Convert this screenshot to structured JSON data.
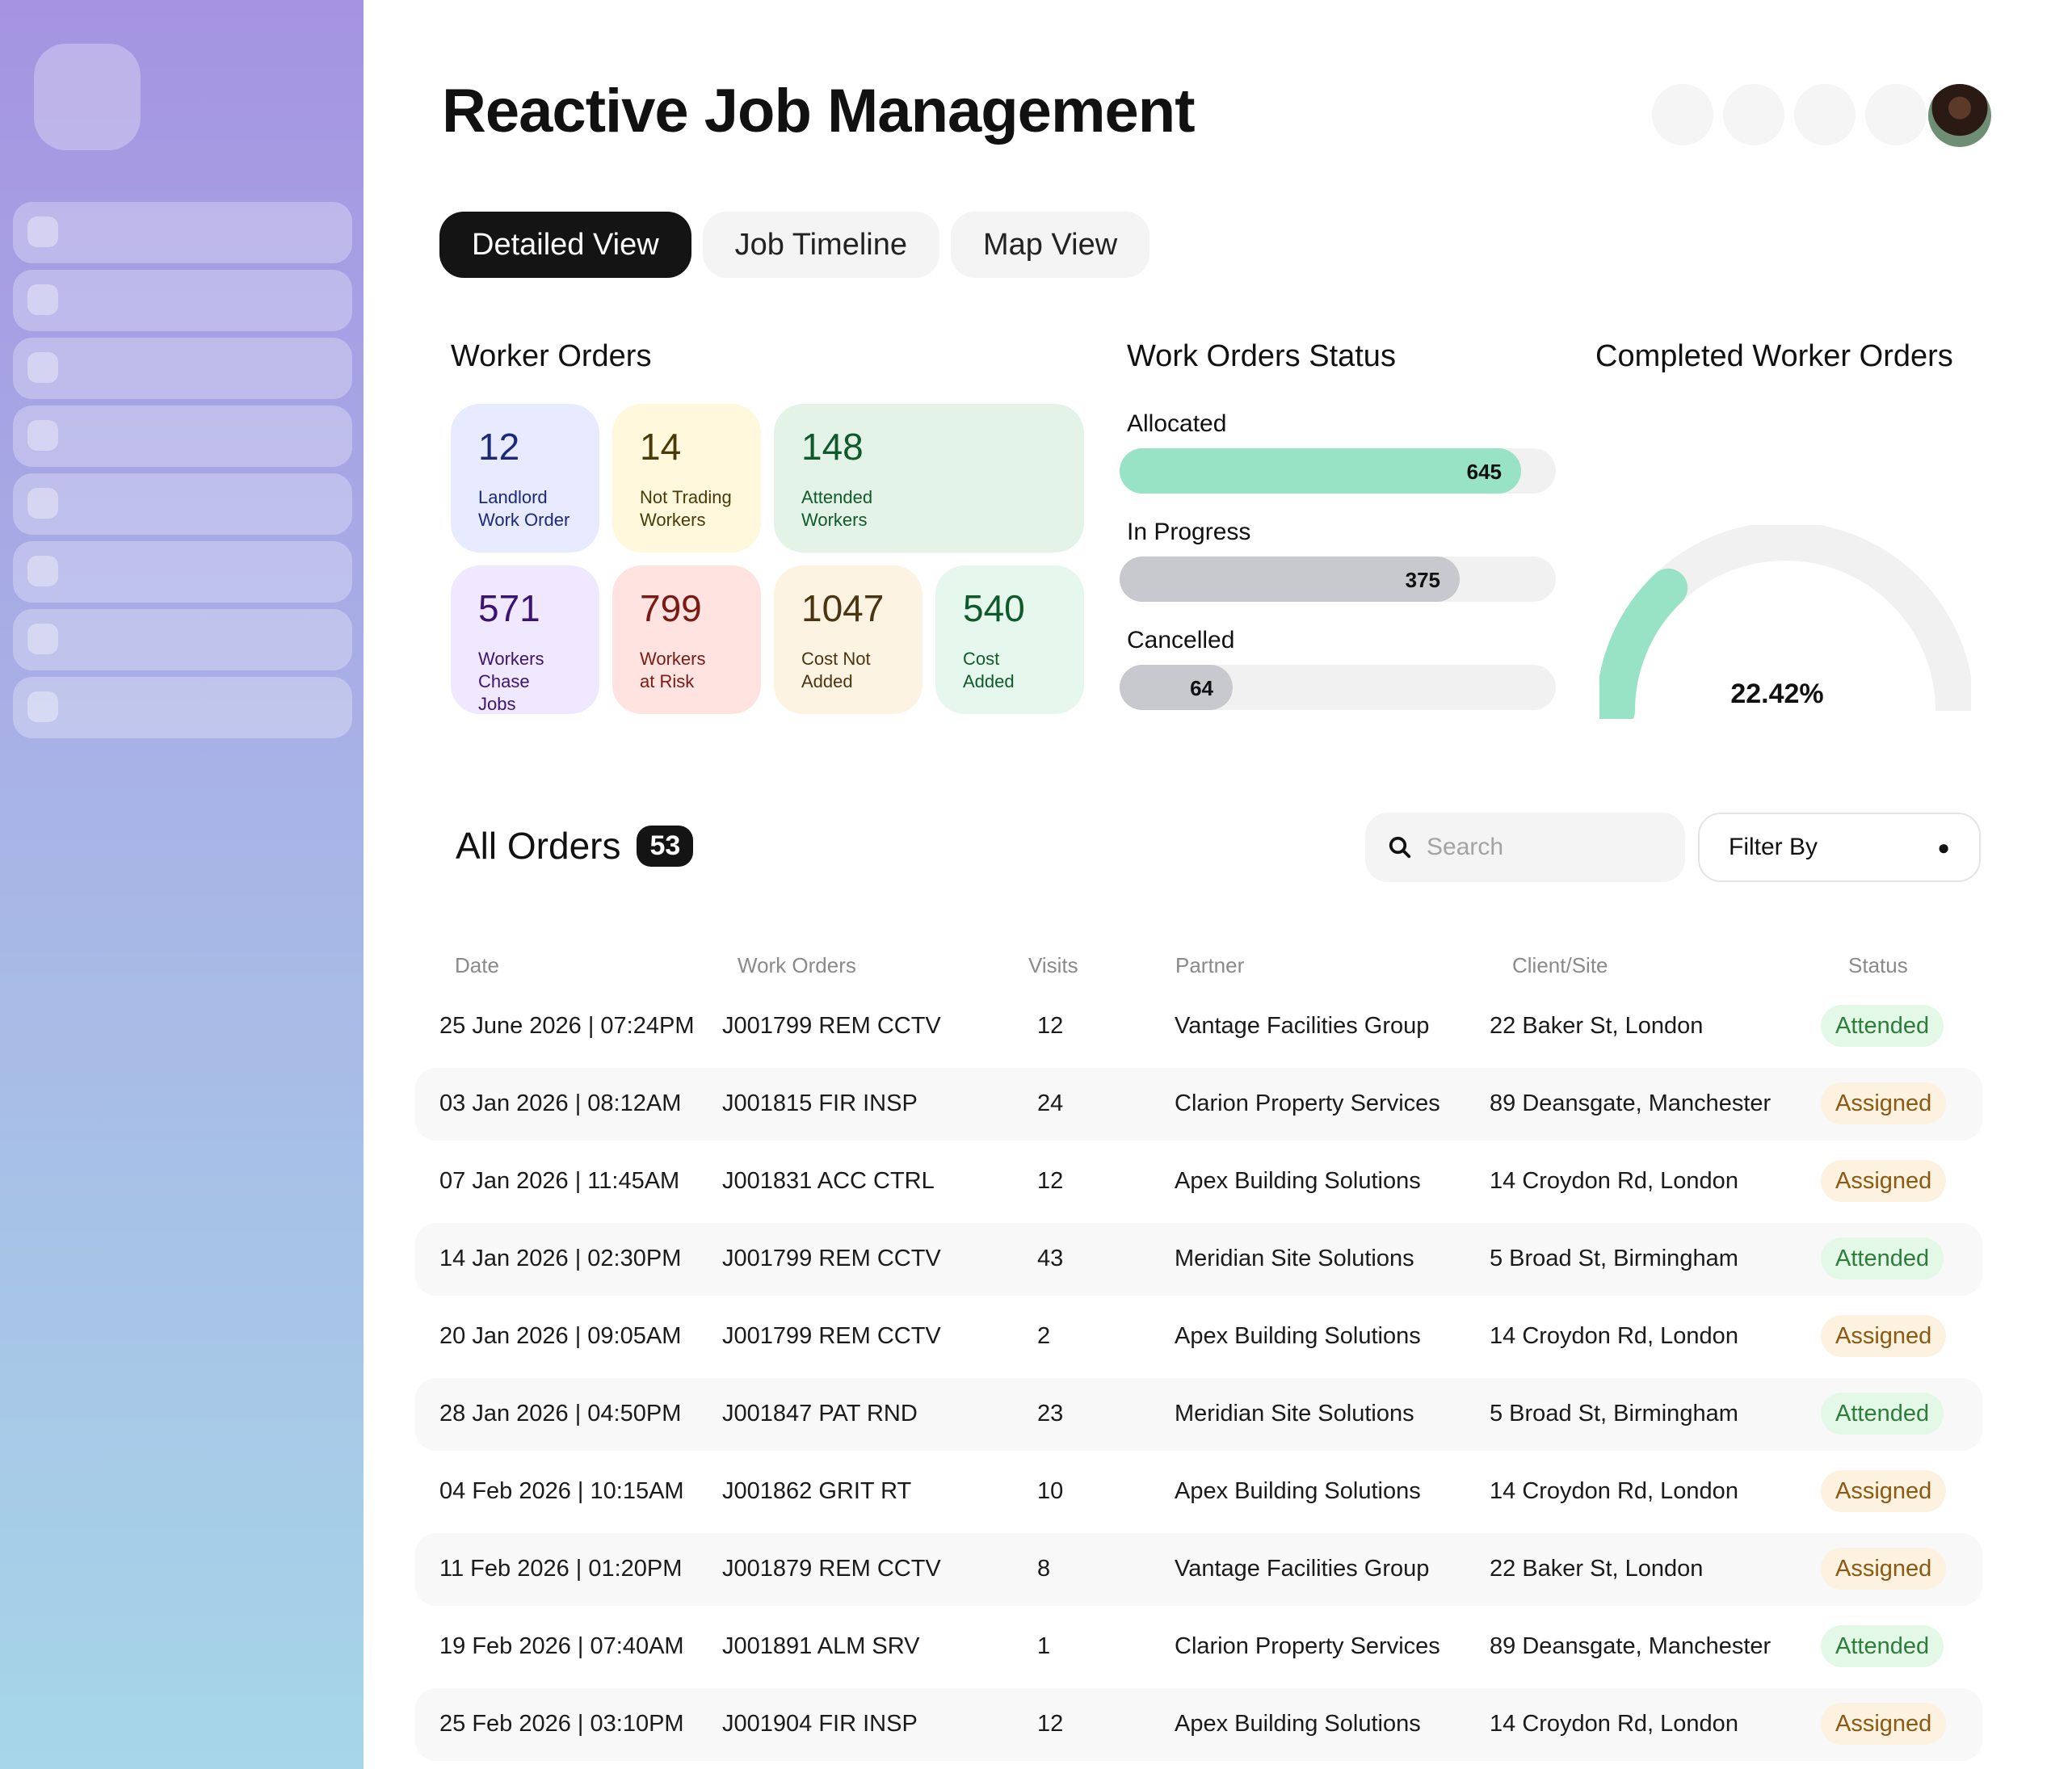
{
  "header": {
    "title": "Reactive Job Management"
  },
  "tabs": [
    {
      "label": "Detailed View"
    },
    {
      "label": "Job Timeline"
    },
    {
      "label": "Map View"
    }
  ],
  "worker_orders": {
    "title": "Worker Orders",
    "cards": [
      {
        "value": "12",
        "label": "Landlord\nWork Order",
        "bg": "#e8eaff",
        "fg": "#1b2a78"
      },
      {
        "value": "14",
        "label": "Not Trading\nWorkers",
        "bg": "#fff8dc",
        "fg": "#4a3a08"
      },
      {
        "value": "148",
        "label": "Attended\nWorkers",
        "bg": "#e3f3e8",
        "fg": "#0f5a2a"
      },
      {
        "value": "571",
        "label": "Workers\nChase Jobs",
        "bg": "#efe8ff",
        "fg": "#3a1470"
      },
      {
        "value": "799",
        "label": "Workers\nat Risk",
        "bg": "#ffe3e0",
        "fg": "#7a1a14"
      },
      {
        "value": "1047",
        "label": "Cost Not\nAdded",
        "bg": "#fdf3e2",
        "fg": "#4a3510"
      },
      {
        "value": "540",
        "label": "Cost\nAdded",
        "bg": "#e6f8ee",
        "fg": "#0f5a2a"
      }
    ]
  },
  "status": {
    "title": "Work Orders Status",
    "items": [
      {
        "label": "Allocated",
        "value": 645,
        "fraction": 0.92,
        "color": "#98e3c5"
      },
      {
        "label": "In Progress",
        "value": 375,
        "fraction": 0.78,
        "color": "#c8c8cf"
      },
      {
        "label": "Cancelled",
        "value": 64,
        "fraction": 0.26,
        "color": "#c8c8cf"
      }
    ]
  },
  "completed": {
    "title": "Completed Worker Orders",
    "value": "22.42%",
    "fraction": 0.2242,
    "color": "#98e3c5"
  },
  "orders": {
    "title": "All Orders",
    "count": "53",
    "search_placeholder": "Search",
    "filter_label": "Filter By",
    "columns": [
      "Date",
      "Work Orders",
      "Visits",
      "Partner",
      "Client/Site",
      "Status"
    ],
    "rows": [
      [
        "25 June 2026 | 07:24PM",
        "J001799 REM CCTV",
        "12",
        "Vantage Facilities Group",
        "22 Baker St, London",
        "Attended"
      ],
      [
        "03 Jan 2026 | 08:12AM",
        "J001815 FIR INSP",
        "24",
        "Clarion Property Services",
        "89 Deansgate, Manchester",
        "Assigned"
      ],
      [
        "07 Jan 2026 | 11:45AM",
        "J001831 ACC CTRL",
        "12",
        "Apex Building Solutions",
        "14 Croydon Rd, London",
        "Assigned"
      ],
      [
        "14 Jan 2026 | 02:30PM",
        "J001799 REM CCTV",
        "43",
        "Meridian Site Solutions",
        "5 Broad St, Birmingham",
        "Attended"
      ],
      [
        "20 Jan 2026 | 09:05AM",
        "J001799 REM CCTV",
        "2",
        "Apex Building Solutions",
        "14 Croydon Rd, London",
        "Assigned"
      ],
      [
        "28 Jan 2026 | 04:50PM",
        "J001847 PAT RND",
        "23",
        "Meridian Site Solutions",
        "5 Broad St, Birmingham",
        "Attended"
      ],
      [
        "04 Feb 2026 | 10:15AM",
        "J001862 GRIT RT",
        "10",
        "Apex Building Solutions",
        "14 Croydon Rd, London",
        "Assigned"
      ],
      [
        "11 Feb 2026 | 01:20PM",
        "J001879 REM CCTV",
        "8",
        "Vantage Facilities Group",
        "22 Baker St, London",
        "Assigned"
      ],
      [
        "19 Feb 2026 | 07:40AM",
        "J001891 ALM SRV",
        "1",
        "Clarion Property Services",
        "89 Deansgate, Manchester",
        "Attended"
      ],
      [
        "25 Feb 2026 | 03:10PM",
        "J001904 FIR INSP",
        "12",
        "Apex Building Solutions",
        "14 Croydon Rd, London",
        "Assigned"
      ]
    ]
  }
}
